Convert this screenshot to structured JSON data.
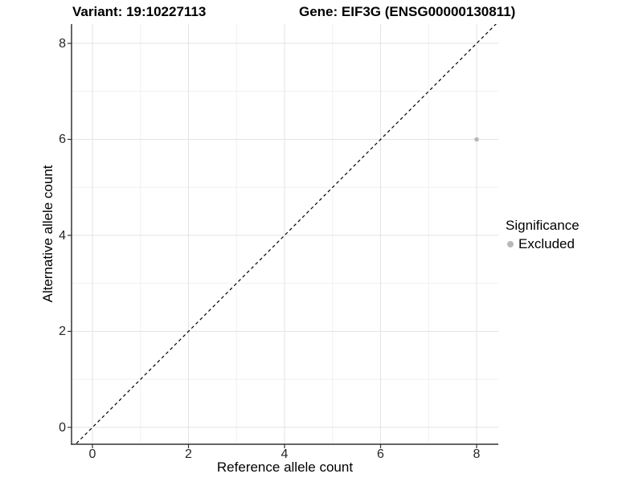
{
  "chart_data": {
    "type": "scatter",
    "titles": {
      "left": "Variant: 19:10227113",
      "right": "Gene: EIF3G (ENSG00000130811)"
    },
    "xlabel": "Reference allele count",
    "ylabel": "Alternative allele count",
    "xlim": [
      -0.4,
      8.4
    ],
    "ylim": [
      -0.4,
      8.4
    ],
    "x_ticks": [
      0,
      2,
      4,
      6,
      8
    ],
    "y_ticks": [
      0,
      2,
      4,
      6,
      8
    ],
    "x_minor_ticks": [
      1,
      3,
      5,
      7
    ],
    "y_minor_ticks": [
      1,
      3,
      5,
      7
    ],
    "grid": "major+minor",
    "legend_position": "right",
    "reference_line": {
      "slope": 1,
      "intercept": 0,
      "style": "dashed",
      "color": "#000000"
    },
    "series": [
      {
        "name": "Excluded",
        "color": "#b8b8b8",
        "points": [
          {
            "x": 8,
            "y": 6
          }
        ]
      }
    ],
    "legend": {
      "title": "Significance",
      "entries": [
        {
          "label": "Excluded",
          "color": "#b8b8b8"
        }
      ]
    },
    "colors": {
      "background": "#ffffff",
      "grid_major": "#e3e3e3",
      "grid_minor": "#f0f0f0",
      "axis": "#333333",
      "tick_text": "#262626",
      "title_text": "#000000"
    }
  }
}
